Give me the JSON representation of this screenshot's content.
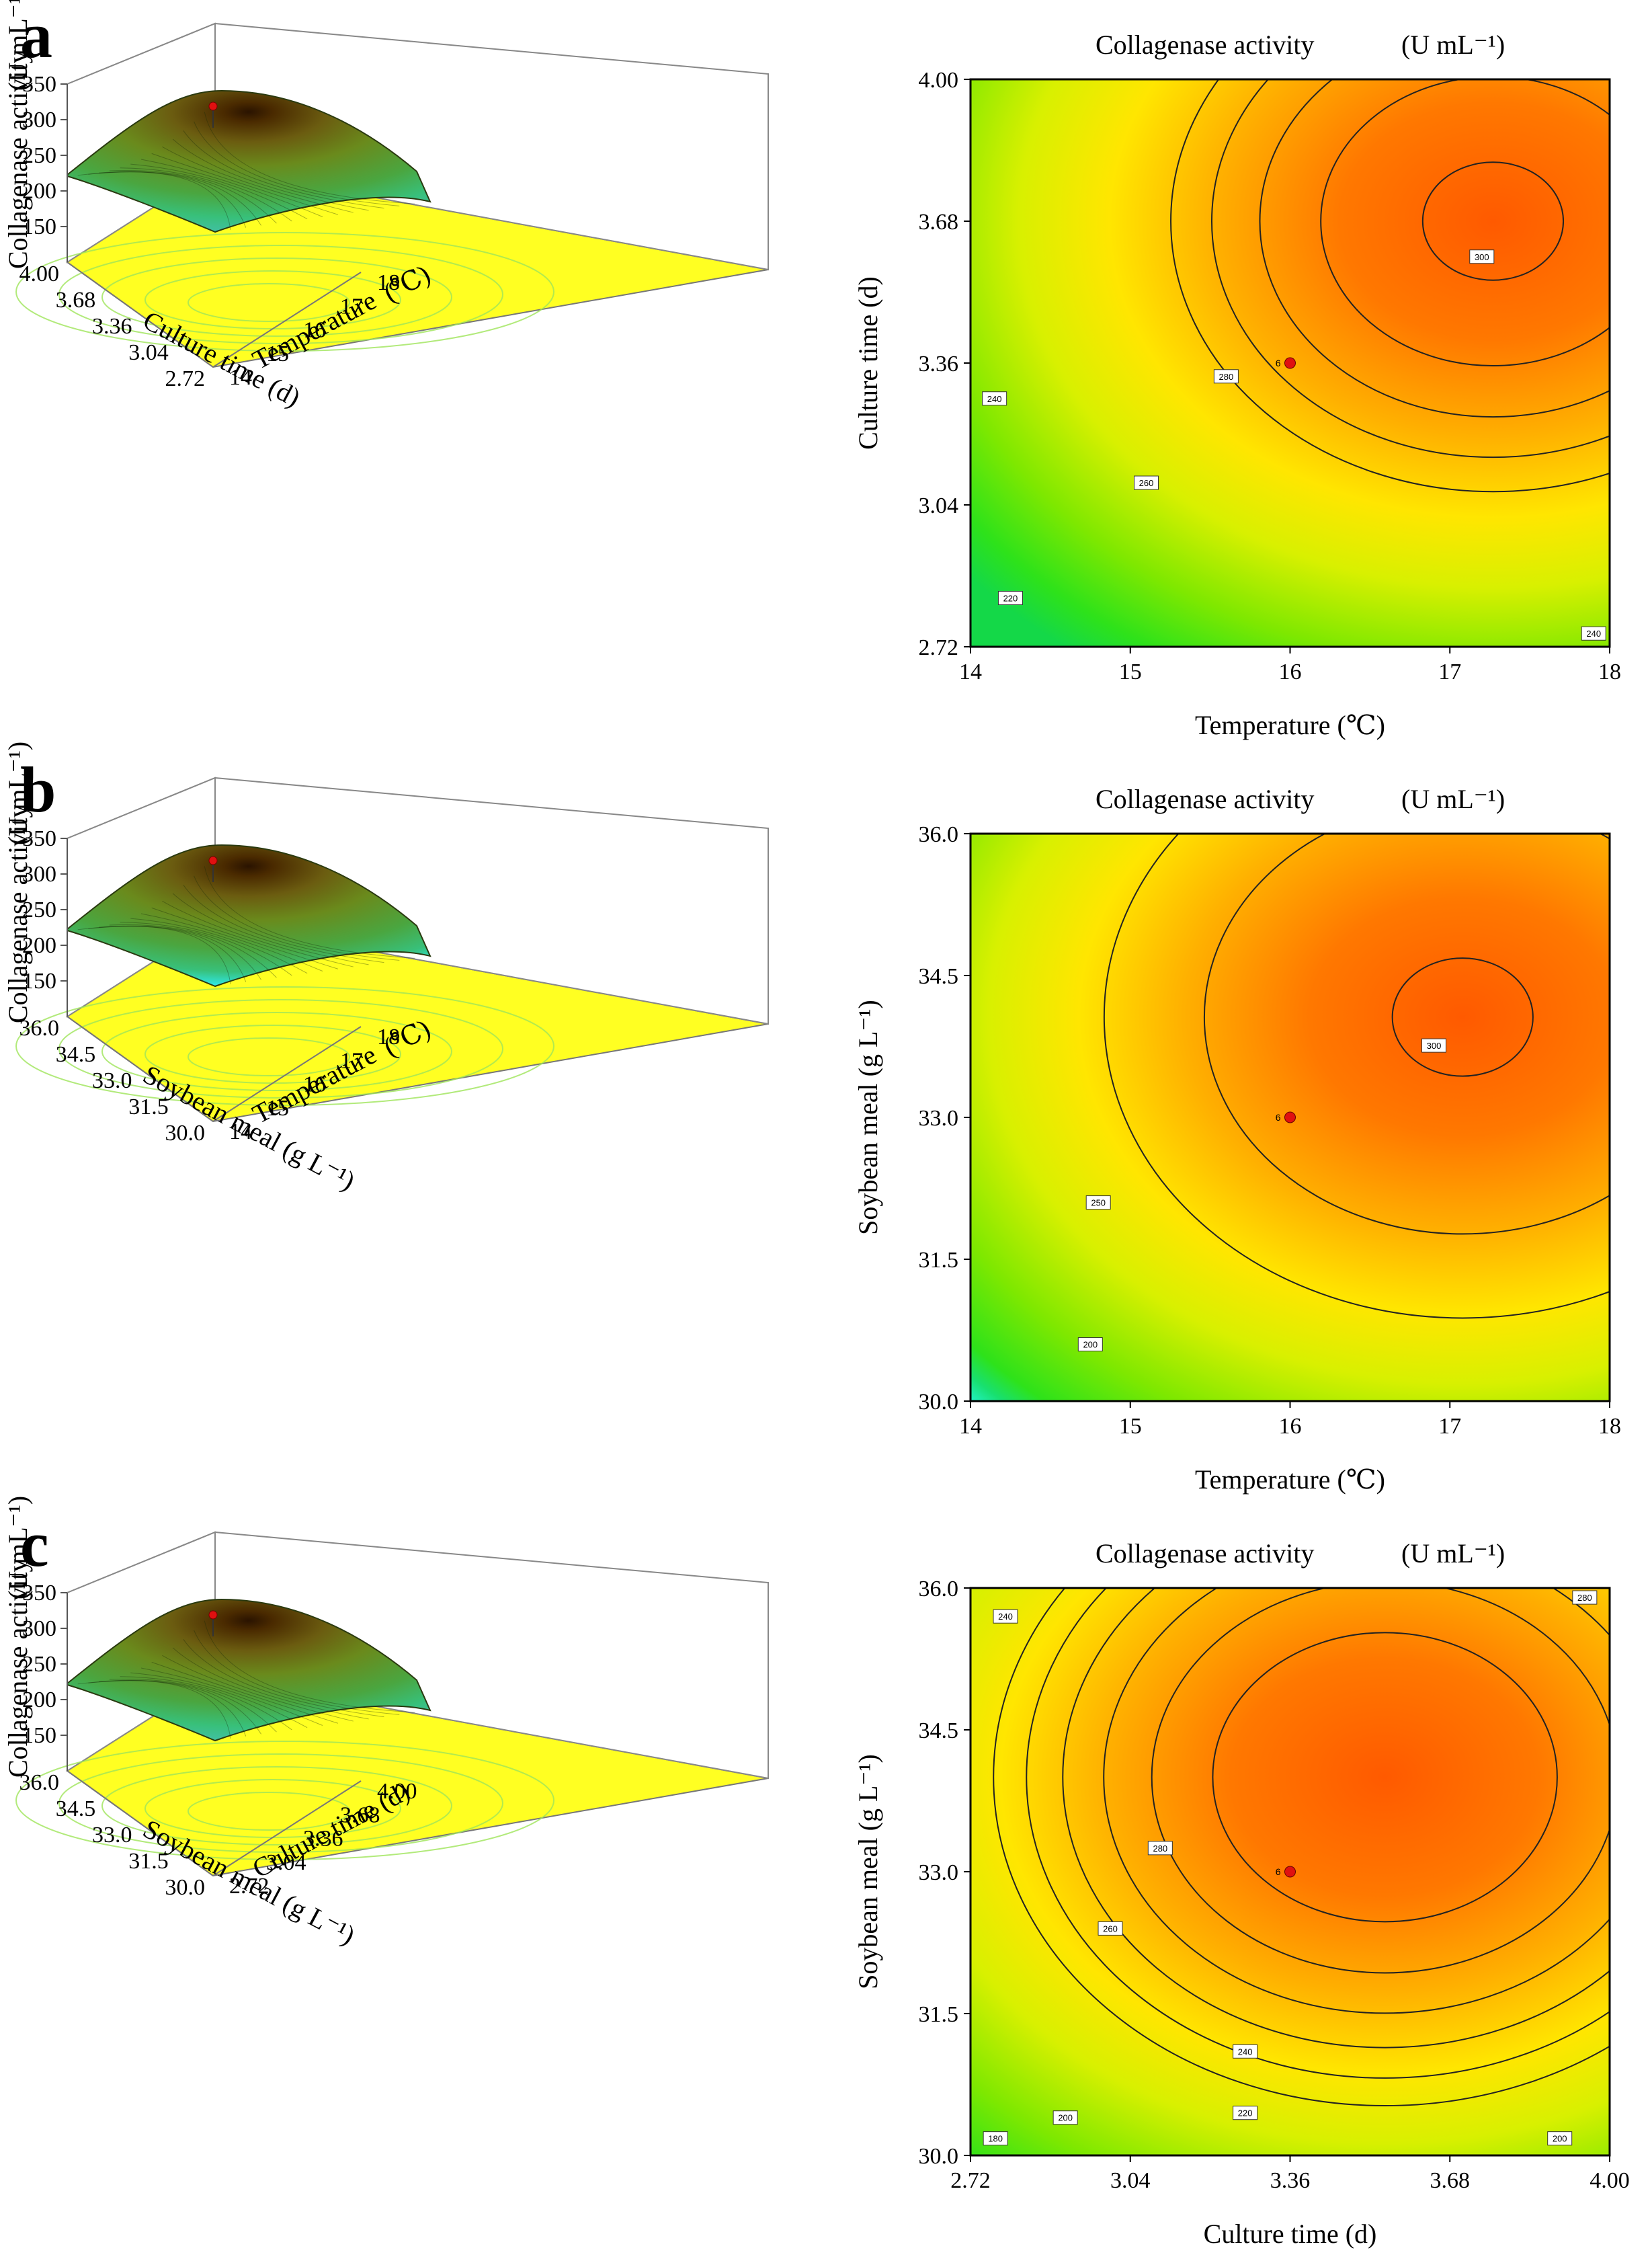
{
  "chart_data": [
    {
      "id": "a",
      "type": "surface3d",
      "panel_letter": "a",
      "zlabel": "Collagenase activity",
      "zunit": "(U mL⁻¹)",
      "zticks": [
        "150",
        "200",
        "250",
        "300",
        "350"
      ],
      "zlim": [
        100,
        350
      ],
      "x_axis": {
        "label": "Temperature",
        "unit": "(℃)",
        "ticks": [
          "14",
          "15",
          "16",
          "17",
          "18"
        ],
        "range": [
          14,
          18
        ]
      },
      "y_axis": {
        "label": "Culture time (d)",
        "ticks": [
          "2.72",
          "3.04",
          "3.36",
          "3.68",
          "4.00"
        ],
        "range": [
          2.72,
          4.0
        ]
      },
      "base_color": "#ffff22",
      "peak_point": {
        "value": 316
      },
      "contour_levels": [
        220,
        240,
        260,
        280,
        300
      ]
    },
    {
      "id": "a",
      "type": "contour",
      "title": "Collagenase activity",
      "title_unit": "(U mL⁻¹)",
      "xlabel": "Temperature (℃)",
      "ylabel": "Culture time (d)",
      "xticks": [
        "14",
        "15",
        "16",
        "17",
        "18"
      ],
      "yticks": [
        "2.72",
        "3.04",
        "3.36",
        "3.68",
        "4.00"
      ],
      "xlim": [
        14,
        18
      ],
      "ylim": [
        2.72,
        4.0
      ],
      "max_point": {
        "x": 17.27,
        "y": 3.68,
        "value": 304
      },
      "design_point": {
        "x": 16,
        "y": 3.36,
        "label": "6"
      },
      "levels": [
        {
          "value": 300,
          "label": "300",
          "at": [
            17.2,
            3.6
          ]
        },
        {
          "value": 280,
          "label": "280",
          "at": [
            15.6,
            3.33
          ]
        },
        {
          "value": 260,
          "label": "260",
          "at": [
            15.1,
            3.09
          ]
        },
        {
          "value": 240,
          "label": "240",
          "at": [
            14.15,
            3.28
          ]
        },
        {
          "value": 240,
          "label": "240",
          "at": [
            17.9,
            2.75
          ]
        },
        {
          "value": 220,
          "label": "220",
          "at": [
            14.25,
            2.83
          ]
        }
      ]
    },
    {
      "id": "b",
      "type": "surface3d",
      "panel_letter": "b",
      "zlabel": "Collagenase activity",
      "zunit": "(U mL⁻¹)",
      "zticks": [
        "150",
        "200",
        "250",
        "300",
        "350"
      ],
      "zlim": [
        100,
        350
      ],
      "x_axis": {
        "label": "Temperature",
        "unit": "(℃)",
        "ticks": [
          "14",
          "15",
          "16",
          "17",
          "18"
        ],
        "range": [
          14,
          18
        ]
      },
      "y_axis": {
        "label": "Soybean meal (g L⁻¹)",
        "ticks": [
          "30.0",
          "31.5",
          "33.0",
          "34.5",
          "36.0"
        ],
        "range": [
          30,
          36
        ]
      },
      "base_color": "#ffff22",
      "peak_point": {
        "value": 316
      },
      "contour_levels": [
        200,
        250,
        300
      ]
    },
    {
      "id": "b",
      "type": "contour",
      "title": "Collagenase activity",
      "title_unit": "(U mL⁻¹)",
      "xlabel": "Temperature (℃)",
      "ylabel": "Soybean meal (g L⁻¹)",
      "xticks": [
        "14",
        "15",
        "16",
        "17",
        "18"
      ],
      "yticks": [
        "30.0",
        "31.5",
        "33.0",
        "34.5",
        "36.0"
      ],
      "xlim": [
        14,
        18
      ],
      "ylim": [
        30,
        36
      ],
      "max_point": {
        "x": 17.08,
        "y": 34.06,
        "value": 304
      },
      "design_point": {
        "x": 16,
        "y": 33.0,
        "label": "6"
      },
      "levels": [
        {
          "value": 300,
          "label": "300",
          "at": [
            16.9,
            33.76
          ]
        },
        {
          "value": 250,
          "label": "250",
          "at": [
            14.8,
            32.1
          ]
        },
        {
          "value": 200,
          "label": "200",
          "at": [
            14.75,
            30.6
          ]
        }
      ]
    },
    {
      "id": "c",
      "type": "surface3d",
      "panel_letter": "c",
      "zlabel": "Collagenase activity",
      "zunit": "(U mL⁻¹)",
      "zticks": [
        "150",
        "200",
        "250",
        "300",
        "350"
      ],
      "zlim": [
        100,
        350
      ],
      "x_axis": {
        "label": "Culture time (d)",
        "unit": "",
        "ticks": [
          "2.72",
          "3.04",
          "3.36",
          "3.68",
          "4.00"
        ],
        "range": [
          2.72,
          4.0
        ]
      },
      "y_axis": {
        "label": "Soybean meal (g L⁻¹)",
        "ticks": [
          "30.0",
          "31.5",
          "33.0",
          "34.5",
          "36.0"
        ],
        "range": [
          30,
          36
        ]
      },
      "base_color": "#ffff22",
      "peak_point": {
        "value": 316
      },
      "contour_levels": [
        180,
        200,
        220,
        240,
        260,
        280
      ]
    },
    {
      "id": "c",
      "type": "contour",
      "title": "Collagenase activity",
      "title_unit": "(U mL⁻¹)",
      "xlabel": "Culture time (d)",
      "ylabel": "Soybean meal (g L⁻¹)",
      "xticks": [
        "2.72",
        "3.04",
        "3.36",
        "3.68",
        "4.00"
      ],
      "yticks": [
        "30.0",
        "31.5",
        "33.0",
        "34.5",
        "36.0"
      ],
      "xlim": [
        2.72,
        4.0
      ],
      "ylim": [
        30,
        36
      ],
      "max_point": {
        "x": 3.55,
        "y": 34.0,
        "value": 304
      },
      "design_point": {
        "x": 3.36,
        "y": 33.0,
        "label": "6"
      },
      "levels": [
        {
          "value": 280,
          "label": "280",
          "at": [
            3.1,
            33.25
          ]
        },
        {
          "value": 280,
          "label": "280",
          "at": [
            3.95,
            35.9
          ]
        },
        {
          "value": 260,
          "label": "260",
          "at": [
            3.0,
            32.4
          ]
        },
        {
          "value": 240,
          "label": "240",
          "at": [
            2.79,
            35.7
          ]
        },
        {
          "value": 240,
          "label": "240",
          "at": [
            3.27,
            31.1
          ]
        },
        {
          "value": 220,
          "label": "220",
          "at": [
            3.27,
            30.45
          ]
        },
        {
          "value": 200,
          "label": "200",
          "at": [
            2.91,
            30.4
          ]
        },
        {
          "value": 200,
          "label": "200",
          "at": [
            3.9,
            30.18
          ]
        },
        {
          "value": 180,
          "label": "180",
          "at": [
            2.77,
            30.18
          ]
        }
      ]
    }
  ]
}
